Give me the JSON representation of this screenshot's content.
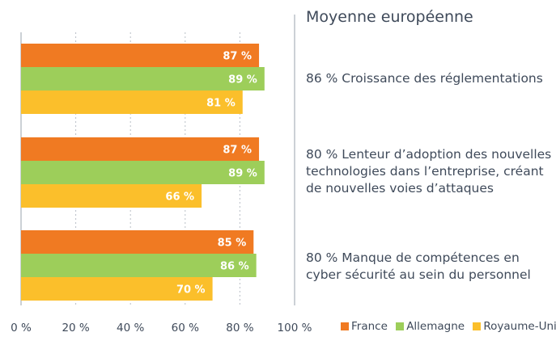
{
  "chart_data": {
    "type": "bar",
    "orientation": "horizontal",
    "categories": [
      "86 % Croissance des réglementations",
      "80 % Lenteur d’adoption des nouvelles technologies dans l’entreprise, créant de nouvelles voies d’attaques",
      "80 % Manque de compétences en cyber sécurité au sein du personnel"
    ],
    "category_lines": [
      [
        "86 % Croissance des réglementations"
      ],
      [
        "80 % Lenteur d’adoption des nouvelles",
        "technologies dans l’entreprise, créant",
        "de nouvelles voies d’attaques"
      ],
      [
        "80 % Manque de compétences en",
        "cyber sécurité au sein du personnel"
      ]
    ],
    "series": [
      {
        "name": "France",
        "color": "#f07a22",
        "values": [
          87,
          87,
          85
        ],
        "labels": [
          "87 %",
          "87 %",
          "85 %"
        ]
      },
      {
        "name": "Allemagne",
        "color": "#9dce5a",
        "values": [
          89,
          89,
          86
        ],
        "labels": [
          "89 %",
          "89 %",
          "86 %"
        ]
      },
      {
        "name": "Royaume-Uni",
        "color": "#fbbf2b",
        "values": [
          81,
          66,
          70
        ],
        "labels": [
          "81 %",
          "66 %",
          "70 %"
        ]
      }
    ],
    "xlim": [
      0,
      100
    ],
    "x_ticks": [
      0,
      20,
      40,
      60,
      80,
      100
    ],
    "x_tick_labels": [
      "0 %",
      "20 %",
      "40 %",
      "60 %",
      "80 %",
      "100 %"
    ],
    "grid": "vertical-dashed",
    "legend_position": "bottom-right",
    "panel_title": "Moyenne européenne"
  }
}
